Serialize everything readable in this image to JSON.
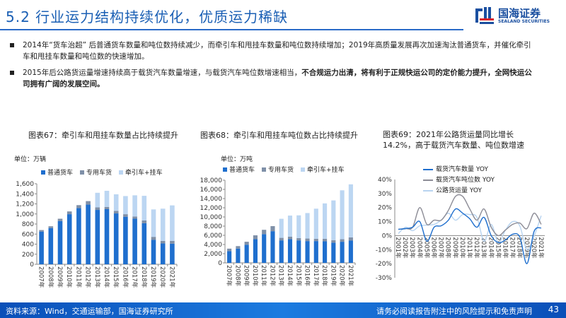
{
  "header": {
    "title": "5.2 行业运力结构持续优化，优质运力稀缺",
    "logo_cn": "国海证券",
    "logo_en": "SEALAND SECURITIES"
  },
  "bullets": [
    {
      "text": "2014年“货车治超” 后普通货车数量和吨位数持续减少，而牵引车和甩挂车数量和吨位数持续增加；2019年高质量发展再次加速淘汰普通货车，并催化牵引车和甩挂车数量和吨位数的快速增加。",
      "bold": ""
    },
    {
      "text": "2015年后公路货运量增速持续高于载货汽车数量增速，与载货汽车吨位数增速相当，",
      "bold": "不合规运力出清，将有利于正规快运公司的定价能力提升，全网快运公司拥有广阔的发展空间。"
    }
  ],
  "colors": {
    "dark": "#1f6fce",
    "mid": "#7f90a8",
    "light": "#bcd6f2",
    "gray": "#8c8c96",
    "line_light": "#b8d4f0",
    "accent": "#1a5fb4"
  },
  "chart_data": [
    {
      "type": "bar",
      "stacked": true,
      "title": "图表67：牵引车和甩挂车数量占比持续提升",
      "unit": "单位：万辆",
      "ylim": [
        0,
        1600
      ],
      "yticks": [
        "0",
        "200",
        "400",
        "600",
        "800",
        "1,000",
        "1,200",
        "1,400",
        "1,600"
      ],
      "categories": [
        "2007年",
        "2008年",
        "2009年",
        "2010年",
        "2011年",
        "2012年",
        "2013年",
        "2014年",
        "2015年",
        "2016年",
        "2017年",
        "2018年",
        "2019年",
        "2020年",
        "2021年"
      ],
      "series": [
        {
          "name": "普通货车",
          "values": [
            650,
            720,
            860,
            995,
            1115,
            1185,
            1080,
            1095,
            1010,
            945,
            905,
            815,
            485,
            415,
            410
          ]
        },
        {
          "name": "专用车货",
          "values": [
            30,
            35,
            45,
            55,
            60,
            70,
            50,
            45,
            50,
            50,
            45,
            55,
            60,
            50,
            55
          ]
        },
        {
          "name": "牵引车+挂车",
          "values": [
            0,
            0,
            0,
            0,
            0,
            0,
            290,
            320,
            330,
            360,
            420,
            490,
            545,
            640,
            705
          ]
        }
      ]
    },
    {
      "type": "bar",
      "stacked": true,
      "title": "图表68：牵引车和甩挂车吨位数占比持续提升",
      "unit": "单位：万吨",
      "ylim": [
        0,
        18000
      ],
      "yticks": [
        "0",
        "2,000",
        "4,000",
        "6,000",
        "8,000",
        "10,000",
        "12,000",
        "14,000",
        "16,000",
        "18,000"
      ],
      "categories": [
        "2007年",
        "2008年",
        "2009年",
        "2010年",
        "2011年",
        "2012年",
        "2013年",
        "2014年",
        "2015年",
        "2016年",
        "2017年",
        "2018年",
        "2019年",
        "2020年",
        "2021年"
      ],
      "series": [
        {
          "name": "普通货车",
          "values": [
            2550,
            3100,
            3950,
            5150,
            6250,
            6900,
            4900,
            5150,
            4900,
            4750,
            4750,
            4700,
            4400,
            4600,
            4850
          ]
        },
        {
          "name": "专用车货",
          "values": [
            550,
            550,
            650,
            850,
            950,
            1100,
            550,
            550,
            500,
            550,
            500,
            550,
            550,
            550,
            700
          ]
        },
        {
          "name": "牵引车+挂车",
          "values": [
            0,
            0,
            0,
            0,
            0,
            0,
            4150,
            4600,
            4950,
            5550,
            6550,
            7700,
            8650,
            10650,
            11550
          ]
        }
      ]
    },
    {
      "type": "line",
      "title": "图表69：2021年公路货运量同比增长14.2%，高于载货汽车数量、吨位数增速",
      "ylim": [
        -30,
        40
      ],
      "yticks": [
        "-30%",
        "-20%",
        "-10%",
        "0%",
        "10%",
        "20%",
        "30%",
        "40%"
      ],
      "categories": [
        "2001年",
        "2002年",
        "2003年",
        "2004年",
        "2005年",
        "2006年",
        "2007年",
        "2008年",
        "2009年",
        "2010年",
        "2011年",
        "2012年",
        "2013年",
        "2014年",
        "2015年",
        "2016年",
        "2017年",
        "2018年",
        "2019年",
        "2020年",
        "2021年"
      ],
      "series": [
        {
          "name": "载货汽车数量 YOY",
          "values": [
            4.5,
            5,
            6,
            10,
            -4,
            6,
            7,
            11,
            19,
            16,
            12,
            6,
            13,
            0,
            -5,
            -3,
            1,
            -1,
            -20,
            3,
            5.5
          ]
        },
        {
          "name": "载货汽车吨位数 YOY",
          "values": [
            4.5,
            5,
            6,
            20,
            8,
            11,
            11,
            18,
            28,
            28,
            19,
            11,
            19,
            6,
            0,
            4,
            8,
            9,
            5,
            16,
            8
          ]
        },
        {
          "name": "公路货运量 YOY",
          "values": [
            1.5,
            6,
            3.5,
            7,
            7.5,
            8,
            11,
            16,
            11,
            15,
            15,
            13,
            -4,
            8,
            -5,
            4,
            10,
            7,
            -10,
            -0.5,
            14.2
          ]
        }
      ]
    }
  ],
  "footer": {
    "source": "资料来源：Wind，交通运输部，国海证券研究所",
    "disclaimer": "请务必阅读报告附注中的风险提示和免责声明",
    "page": "43"
  }
}
